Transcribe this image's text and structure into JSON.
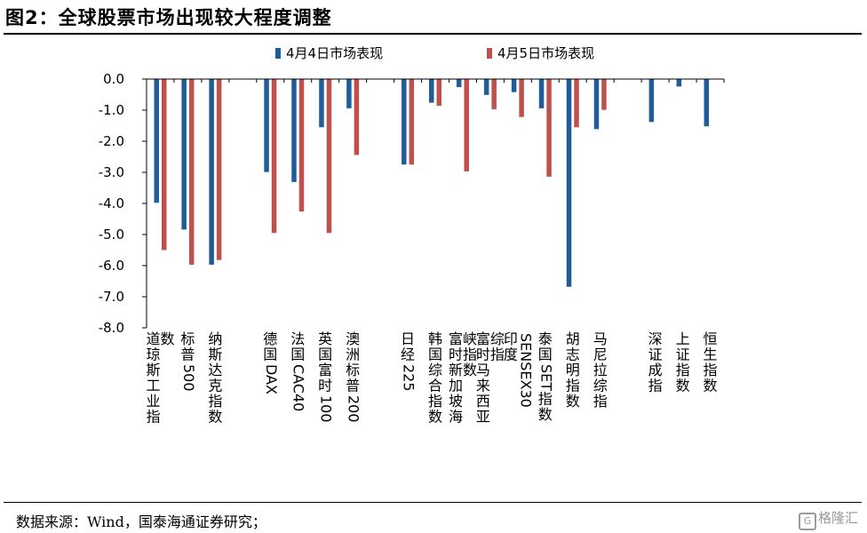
{
  "figure_title": "图2：全球股票市场出现较大程度调整",
  "source_note": "数据来源：Wind，国泰海通证券研究；",
  "watermark": {
    "icon": "G",
    "text": "格隆汇"
  },
  "colors": {
    "series1": "#1f5c99",
    "series2": "#c0504d"
  },
  "chart_data": {
    "type": "bar",
    "title": "",
    "xlabel": "",
    "ylabel": "",
    "ylim": [
      -8.0,
      0.0
    ],
    "yticks": [
      "0.0",
      "-1.0",
      "-2.0",
      "-3.0",
      "-4.0",
      "-5.0",
      "-6.0",
      "-7.0",
      "-8.0"
    ],
    "legend_position": "top",
    "categories": [
      "道琼斯工业指数",
      "标普500",
      "纳斯达克指数",
      "",
      "德国DAX",
      "法国CAC40",
      "英国富时100",
      "澳洲标普200",
      "",
      "日经225",
      "韩国综合指数",
      "富时新加坡海峡指数",
      "富时马来西亚综指",
      "印度SENSEX30",
      "泰国SET指数",
      "胡志明指数",
      "马尼拉综指",
      "",
      "深证成指",
      "上证指数",
      "恒生指数"
    ],
    "series": [
      {
        "name": "4月4日市场表现",
        "values": [
          -3.98,
          -4.84,
          -5.97,
          null,
          -2.99,
          -3.31,
          -1.55,
          -0.94,
          null,
          -2.75,
          -0.76,
          -0.26,
          -0.51,
          -0.42,
          -0.94,
          -6.68,
          -1.61,
          null,
          -1.38,
          -0.24,
          -1.52
        ]
      },
      {
        "name": "4月5日市场表现",
        "values": [
          -5.5,
          -5.97,
          -5.82,
          null,
          -4.95,
          -4.26,
          -4.95,
          -2.44,
          null,
          -2.75,
          -0.86,
          -2.97,
          -0.97,
          -1.22,
          -3.14,
          -1.55,
          -0.99,
          null,
          null,
          null,
          null
        ]
      }
    ]
  }
}
